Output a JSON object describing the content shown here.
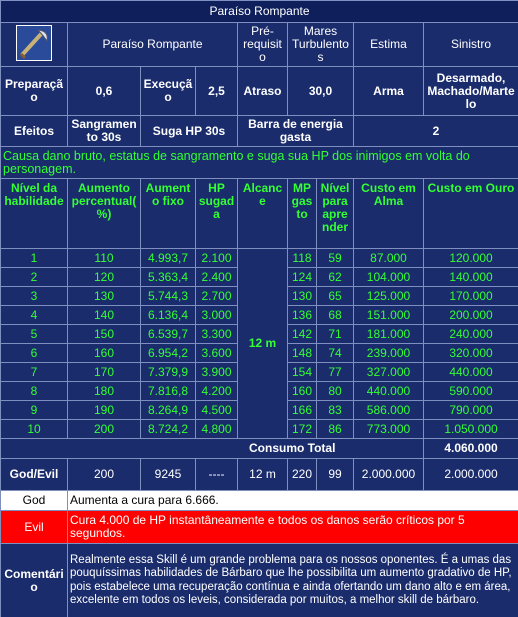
{
  "title": "Paraíso Rompante",
  "info": {
    "name": "Paraíso Rompante",
    "prereq_label": "Pré-requisito",
    "prereq": "Mares Turbulentos",
    "rank_label": "Estima",
    "rank": "Sinistro",
    "prep_label": "Preparação",
    "prep": "0,6",
    "exec_label": "Execução",
    "exec": "2,5",
    "delay_label": "Atraso",
    "delay": "30,0",
    "weapon_label": "Arma",
    "weapon": "Desarmado, Machado/Martelo",
    "effects_label": "Efeitos",
    "effects": [
      "Sangramento 30s",
      "Suga HP 30s",
      "Barra de energia gasta"
    ],
    "effects_value": "2"
  },
  "description": "Causa dano bruto, estatus de sangramento e suga sua HP dos inimigos em volta do personagem.",
  "table": {
    "headers": [
      "Nível da habilidade",
      "Aumento percentual(%)",
      "Aumento fixo",
      "HP sugada",
      "Alcance",
      "MP gasto",
      "Nível para aprender",
      "Custo em Alma",
      "Custo em Ouro"
    ],
    "rows": [
      [
        "1",
        "110",
        "4.993,7",
        "2.100",
        "118",
        "59",
        "87.000",
        "120.000"
      ],
      [
        "2",
        "120",
        "5.363,4",
        "2.400",
        "124",
        "62",
        "104.000",
        "140.000"
      ],
      [
        "3",
        "130",
        "5.744,3",
        "2.700",
        "130",
        "65",
        "125.000",
        "170.000"
      ],
      [
        "4",
        "140",
        "6.136,4",
        "3.000",
        "136",
        "68",
        "151.000",
        "200.000"
      ],
      [
        "5",
        "150",
        "6.539,7",
        "3.300",
        "142",
        "71",
        "181.000",
        "240.000"
      ],
      [
        "6",
        "160",
        "6.954,2",
        "3.600",
        "148",
        "74",
        "239.000",
        "320.000"
      ],
      [
        "7",
        "170",
        "7.379,9",
        "3.900",
        "154",
        "77",
        "327.000",
        "440.000"
      ],
      [
        "8",
        "180",
        "7.816,8",
        "4.200",
        "160",
        "80",
        "440.000",
        "590.000"
      ],
      [
        "9",
        "190",
        "8.264,9",
        "4.500",
        "166",
        "83",
        "586.000",
        "790.000"
      ],
      [
        "10",
        "200",
        "8.724,2",
        "4.800",
        "172",
        "86",
        "773.000",
        "1.050.000"
      ]
    ],
    "range": "12 m",
    "total_label": "Consumo Total",
    "total": "4.060.000",
    "god_evil": [
      "God/Evil",
      "200",
      "9245",
      "----",
      "12 m",
      "220",
      "99",
      "2.000.000",
      "2.000.000"
    ]
  },
  "god": {
    "label": "God",
    "text": "Aumenta a cura para 6.666."
  },
  "evil": {
    "label": "Evil",
    "text": "Cura 4.000 de HP instantâneamente e todos os danos serão críticos por 5 segundos."
  },
  "comment": {
    "label": "Comentário",
    "text": "Realmente essa Skill é um grande problema para os nossos oponentes. É a umas das pouquíssimas habilidades de Bárbaro que lhe possibilita um aumento gradativo de HP, pois estabelece uma recuperação contínua e ainda ofertando um dano alto e em área, excelente em todos os leveis, considerada por muitos, a melhor skill de bárbaro."
  }
}
